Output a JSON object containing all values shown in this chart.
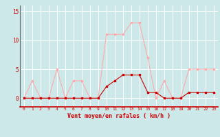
{
  "hours": [
    0,
    1,
    2,
    3,
    4,
    5,
    6,
    7,
    8,
    9,
    10,
    11,
    12,
    13,
    14,
    15,
    16,
    17,
    18,
    19,
    20,
    21,
    22,
    23
  ],
  "vent_moyen": [
    0,
    0,
    0,
    0,
    0,
    0,
    0,
    0,
    0,
    0,
    2,
    3,
    4,
    4,
    4,
    1,
    1,
    0,
    0,
    0,
    1,
    1,
    1,
    1
  ],
  "rafales": [
    0,
    3,
    0,
    0,
    5,
    0,
    3,
    3,
    0,
    0,
    11,
    11,
    11,
    13,
    13,
    7,
    0,
    3,
    0,
    0,
    5,
    5,
    5,
    5
  ],
  "color_moyen": "#cc0000",
  "color_rafales": "#ffaaaa",
  "bg_color": "#cce8e8",
  "grid_color": "#ffffff",
  "xlabel": "Vent moyen/en rafales ( km/h )",
  "yticks": [
    0,
    5,
    10,
    15
  ],
  "ylim": [
    -1.5,
    16
  ],
  "xlim": [
    -0.5,
    23.5
  ]
}
